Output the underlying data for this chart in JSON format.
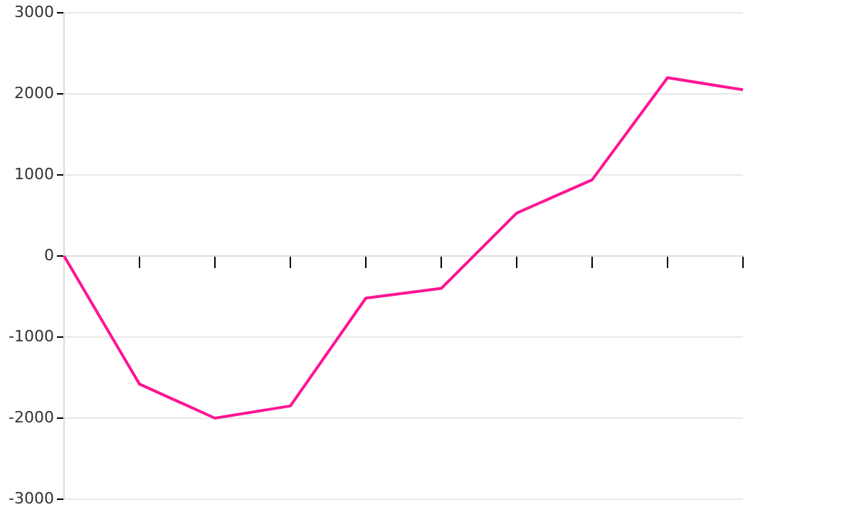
{
  "chart_data": {
    "type": "line",
    "categories": [
      null,
      null,
      null,
      null,
      null,
      null,
      null,
      null,
      null,
      null
    ],
    "ylim": [
      -3000,
      3000
    ],
    "yticks": [
      -3000,
      -2000,
      -1000,
      0,
      1000,
      2000,
      3000
    ],
    "series": [
      {
        "color": "#ff1493",
        "values": [
          0,
          -1580,
          -2000,
          -1850,
          -520,
          -400,
          530,
          940,
          2200,
          2050
        ]
      }
    ],
    "grid": "y",
    "tick_labels": "y",
    "marker": "none",
    "line_style": "solid",
    "legend": false
  }
}
